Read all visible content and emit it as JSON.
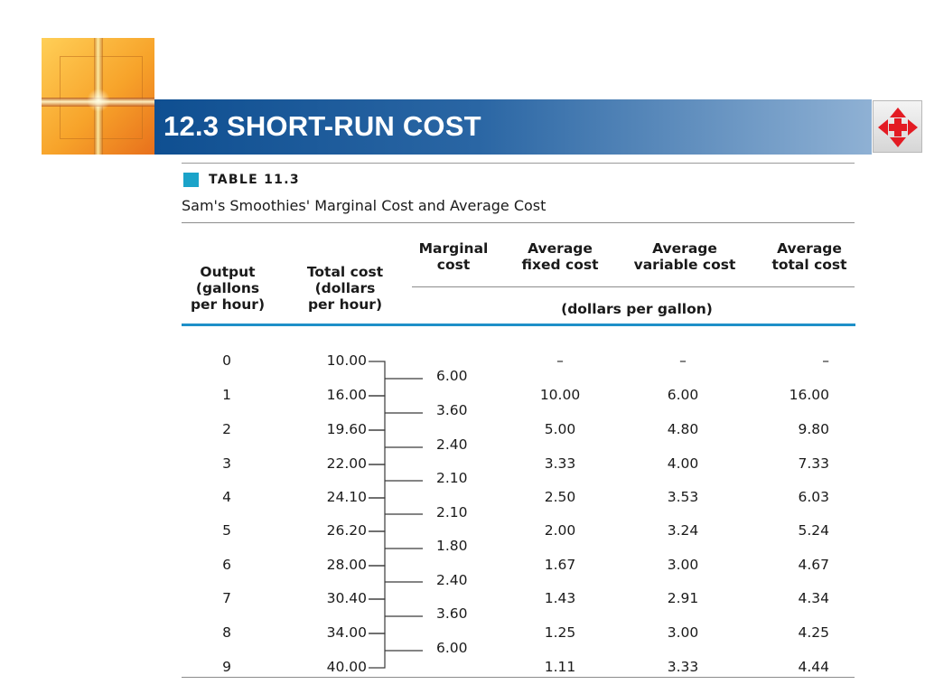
{
  "header": {
    "title": "12.3 SHORT-RUN COST",
    "nav_icon": "four-way-arrows-icon",
    "nav_color": "#e31b23",
    "bar_color_start": "#0f4f91",
    "bar_color_end": "#8fb1d4"
  },
  "table": {
    "tag": "TABLE 11.3",
    "caption": "Sam's Smoothies' Marginal Cost and Average Cost",
    "accent_color": "#1ba3c9",
    "columns": [
      "Output\n(gallons\nper hour)",
      "Total cost\n(dollars\nper hour)",
      "Marginal\ncost",
      "Average\nfixed cost",
      "Average\nvariable cost",
      "Average\ntotal cost"
    ],
    "units_label": "(dollars per gallon)",
    "rows": [
      {
        "output": "0",
        "total_cost": "10.00",
        "afc": "–",
        "avc": "–",
        "atc": "–"
      },
      {
        "output": "1",
        "total_cost": "16.00",
        "afc": "10.00",
        "avc": "6.00",
        "atc": "16.00"
      },
      {
        "output": "2",
        "total_cost": "19.60",
        "afc": "5.00",
        "avc": "4.80",
        "atc": "9.80"
      },
      {
        "output": "3",
        "total_cost": "22.00",
        "afc": "3.33",
        "avc": "4.00",
        "atc": "7.33"
      },
      {
        "output": "4",
        "total_cost": "24.10",
        "afc": "2.50",
        "avc": "3.53",
        "atc": "6.03"
      },
      {
        "output": "5",
        "total_cost": "26.20",
        "afc": "2.00",
        "avc": "3.24",
        "atc": "5.24"
      },
      {
        "output": "6",
        "total_cost": "28.00",
        "afc": "1.67",
        "avc": "3.00",
        "atc": "4.67"
      },
      {
        "output": "7",
        "total_cost": "30.40",
        "afc": "1.43",
        "avc": "2.91",
        "atc": "4.34"
      },
      {
        "output": "8",
        "total_cost": "34.00",
        "afc": "1.25",
        "avc": "3.00",
        "atc": "4.25"
      },
      {
        "output": "9",
        "total_cost": "40.00",
        "afc": "1.11",
        "avc": "3.33",
        "atc": "4.44"
      }
    ],
    "marginal_costs": [
      "6.00",
      "3.60",
      "2.40",
      "2.10",
      "2.10",
      "1.80",
      "2.40",
      "3.60",
      "6.00"
    ]
  }
}
